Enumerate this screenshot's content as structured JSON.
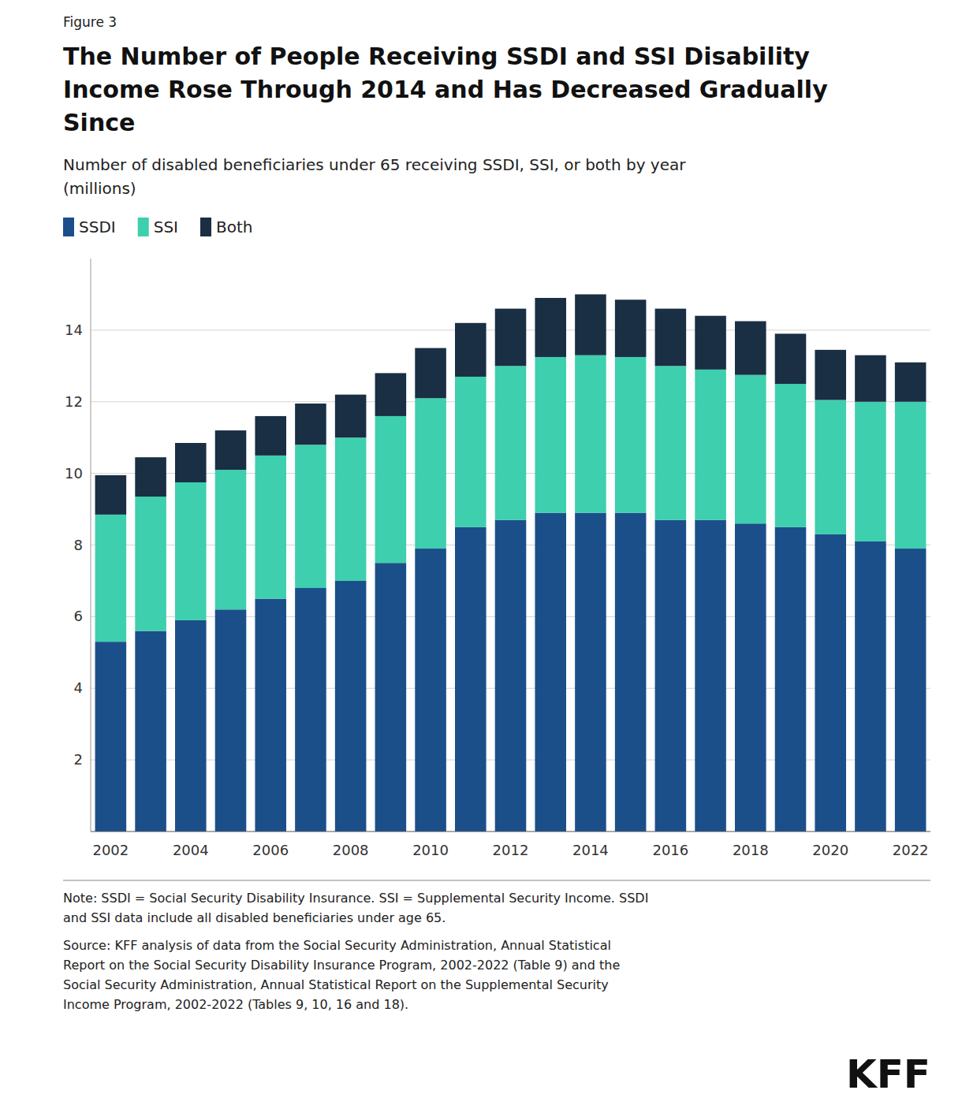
{
  "chart_data": {
    "type": "bar",
    "stacked": true,
    "title": [
      "The Number of People Receiving SSDI and SSI Disability",
      "Income Rose Through 2014 and Has Decreased Gradually",
      "Since"
    ],
    "subtitle": [
      "Number of disabled beneficiaries under 65 receiving SSDI, SSI, or both by year",
      "(millions)"
    ],
    "annotations": [
      "Figure 3",
      "Note: SSDI = Social Security Disability Insurance. SSI = Supplemental Security Income. SSDI",
      "and SSI data include all disabled beneficiaries under age 65.",
      "Source: KFF analysis of data from the Social Security Administration, Annual Statistical",
      "Report on the Social Security Disability Insurance Program, 2002-2022 (Table 9) and the",
      "Social Security Administration, Annual Statistical Report on the Supplemental Security",
      "Income Program, 2002-2022 (Tables 9, 10, 16 and 18).",
      "KFF"
    ],
    "categories": [
      2002,
      null,
      2004,
      null,
      2006,
      null,
      2008,
      null,
      2010,
      null,
      2012,
      null,
      2014,
      null,
      2016,
      null,
      2018,
      null,
      2020,
      null,
      2022
    ],
    "series": [
      {
        "name": "SSDI",
        "color": "#1B4F8A",
        "values": [
          5.3,
          5.6,
          5.9,
          6.2,
          6.5,
          6.8,
          7.0,
          7.5,
          7.9,
          8.5,
          8.7,
          8.9,
          8.9,
          8.9,
          8.7,
          8.7,
          8.6,
          8.5,
          8.3,
          8.1,
          7.9
        ]
      },
      {
        "name": "SSI",
        "color": "#3ECFAE",
        "values": [
          3.55,
          3.75,
          3.85,
          3.9,
          4.0,
          4.0,
          4.0,
          4.1,
          4.2,
          4.2,
          4.3,
          4.35,
          4.4,
          4.35,
          4.3,
          4.2,
          4.15,
          4.0,
          3.75,
          3.9,
          4.1
        ]
      },
      {
        "name": "Both",
        "color": "#1A2E44",
        "values": [
          1.1,
          1.1,
          1.1,
          1.1,
          1.1,
          1.15,
          1.2,
          1.2,
          1.4,
          1.5,
          1.6,
          1.65,
          1.7,
          1.6,
          1.6,
          1.5,
          1.5,
          1.4,
          1.4,
          1.3,
          1.1
        ]
      }
    ],
    "ylim": [
      0,
      16
    ],
    "yticks": [
      2,
      4,
      6,
      8,
      10,
      12,
      14
    ],
    "grid": true,
    "legend": "top"
  }
}
